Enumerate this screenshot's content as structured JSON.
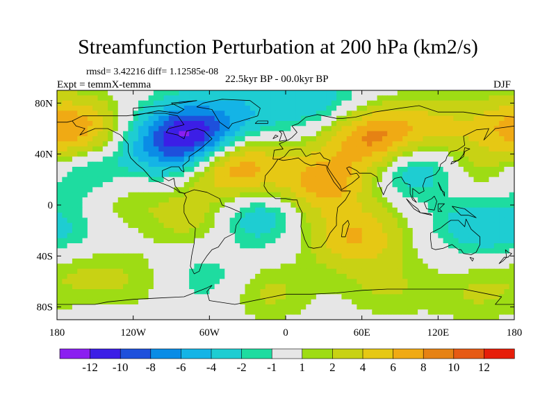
{
  "chart_data": {
    "type": "heatmap",
    "title": "Streamfunction Perturbation at 200 hPa (km2/s)",
    "stats_line": "rmsd= 3.42216 diff= 1.12585e-08",
    "experiment": "Expt = temmX-temma",
    "period": "22.5kyr BP - 00.0kyr BP",
    "season": "DJF",
    "x_range": [
      -180,
      180
    ],
    "y_range": [
      -90,
      90
    ],
    "x_ticks": [
      {
        "value": -180,
        "label": "180"
      },
      {
        "value": -120,
        "label": "120W"
      },
      {
        "value": -60,
        "label": "60W"
      },
      {
        "value": 0,
        "label": "0"
      },
      {
        "value": 60,
        "label": "60E"
      },
      {
        "value": 120,
        "label": "120E"
      },
      {
        "value": 180,
        "label": "180"
      }
    ],
    "y_ticks": [
      {
        "value": 80,
        "label": "80N"
      },
      {
        "value": 40,
        "label": "40N"
      },
      {
        "value": 0,
        "label": "0"
      },
      {
        "value": -40,
        "label": "40S"
      },
      {
        "value": -80,
        "label": "80S"
      }
    ],
    "colorbar": {
      "colors": [
        "#8b1ff0",
        "#3c1ee6",
        "#1e50dc",
        "#0a8ce6",
        "#14b4e6",
        "#1ecdd2",
        "#1edca0",
        "#e6e6e6",
        "#9edc14",
        "#c8d214",
        "#e6c814",
        "#f0aa14",
        "#e68214",
        "#e65a14",
        "#e61e0a"
      ],
      "labels": [
        "-12",
        "-10",
        "-8",
        "-6",
        "-4",
        "-2",
        "-1",
        "1",
        "2",
        "4",
        "6",
        "8",
        "10",
        "12"
      ]
    },
    "anomalies": [
      {
        "lon": -75,
        "lat": 55,
        "value": -11.5
      },
      {
        "lon": -30,
        "lat": 75,
        "value": -3
      },
      {
        "lon": 30,
        "lat": 80,
        "value": -3
      },
      {
        "lon": -170,
        "lat": 60,
        "value": 8
      },
      {
        "lon": 70,
        "lat": 52,
        "value": 9
      },
      {
        "lon": 30,
        "lat": 18,
        "value": 7
      },
      {
        "lon": -40,
        "lat": 30,
        "value": 8
      },
      {
        "lon": -165,
        "lat": 25,
        "value": -4
      },
      {
        "lon": 100,
        "lat": 32,
        "value": -5
      },
      {
        "lon": 150,
        "lat": -15,
        "value": -3
      },
      {
        "lon": 160,
        "lat": 25,
        "value": 3
      },
      {
        "lon": -130,
        "lat": 5,
        "value": 2
      },
      {
        "lon": -70,
        "lat": -10,
        "value": 3
      },
      {
        "lon": -25,
        "lat": -8,
        "value": -4
      },
      {
        "lon": 55,
        "lat": -25,
        "value": 6
      },
      {
        "lon": -60,
        "lat": -58,
        "value": -2
      },
      {
        "lon": -120,
        "lat": -60,
        "value": 1.5
      },
      {
        "lon": -15,
        "lat": -68,
        "value": 2.5
      },
      {
        "lon": 80,
        "lat": -65,
        "value": 2
      },
      {
        "lon": 150,
        "lat": -70,
        "value": 2
      },
      {
        "lon": -170,
        "lat": -25,
        "value": -1.8
      },
      {
        "lon": -100,
        "lat": 40,
        "value": -3
      },
      {
        "lon": 120,
        "lat": 60,
        "value": 4
      },
      {
        "lon": -160,
        "lat": -50,
        "value": 2
      }
    ]
  }
}
